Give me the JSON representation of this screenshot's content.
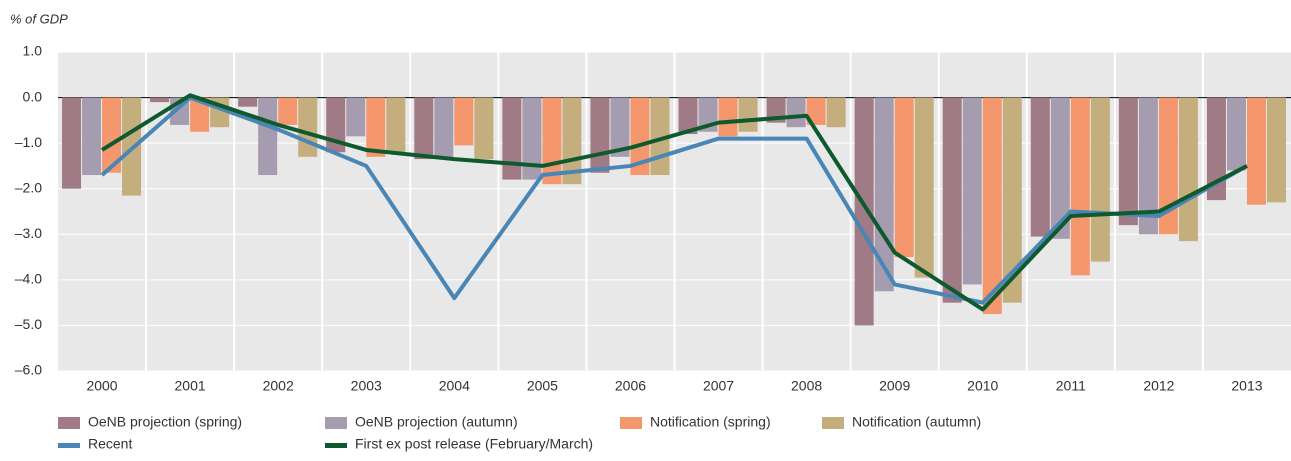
{
  "chart_data": {
    "type": "bar_line",
    "y_label": "% of GDP",
    "categories": [
      "2000",
      "2001",
      "2002",
      "2003",
      "2004",
      "2005",
      "2006",
      "2007",
      "2008",
      "2009",
      "2010",
      "2011",
      "2012",
      "2013"
    ],
    "series": [
      {
        "name": "OeNB projection (spring)",
        "color": "#a07a85",
        "kind": "bar",
        "values": [
          -2.0,
          -0.1,
          -0.2,
          -1.2,
          -1.35,
          -1.8,
          -1.65,
          -0.8,
          -0.55,
          -5.0,
          -4.5,
          -3.05,
          -2.8,
          -2.25
        ]
      },
      {
        "name": "OeNB projection (autumn)",
        "color": "#a69cb0",
        "kind": "bar",
        "values": [
          -1.7,
          -0.6,
          -1.7,
          -0.85,
          -1.35,
          -1.8,
          -1.3,
          -0.75,
          -0.65,
          -4.25,
          -4.1,
          -3.1,
          -3.0,
          -1.6
        ]
      },
      {
        "name": "Notification (spring)",
        "color": "#f4976c",
        "kind": "bar",
        "values": [
          -1.65,
          -0.75,
          -0.6,
          -1.3,
          -1.05,
          -1.9,
          -1.7,
          -0.85,
          -0.6,
          -3.5,
          -4.75,
          -3.9,
          -3.0,
          -2.35
        ]
      },
      {
        "name": "Notification (autumn)",
        "color": "#c5ae7e",
        "kind": "bar",
        "values": [
          -2.15,
          -0.65,
          -1.3,
          -1.2,
          -1.35,
          -1.9,
          -1.7,
          -0.75,
          -0.65,
          -3.95,
          -4.5,
          -3.6,
          -3.15,
          -2.3
        ]
      },
      {
        "name": "Recent",
        "color": "#4a86b5",
        "kind": "line",
        "values": [
          -1.7,
          0.0,
          -0.7,
          -1.5,
          -4.4,
          -1.7,
          -1.5,
          -0.9,
          -0.9,
          -4.1,
          -4.5,
          -2.5,
          -2.6,
          -1.5
        ]
      },
      {
        "name": "First ex post release (February/March)",
        "color": "#0e5a2e",
        "kind": "line",
        "values": [
          -1.15,
          0.05,
          -0.6,
          -1.15,
          -1.35,
          -1.5,
          -1.1,
          -0.55,
          -0.4,
          -3.4,
          -4.65,
          -2.6,
          -2.5,
          -1.5
        ]
      }
    ],
    "ylim": [
      -6.0,
      1.0
    ],
    "yticks": [
      {
        "value": 1.0,
        "label": "1.0"
      },
      {
        "value": 0.0,
        "label": "0.0"
      },
      {
        "value": -1.0,
        "label": "–1.0"
      },
      {
        "value": -2.0,
        "label": "–2.0"
      },
      {
        "value": -3.0,
        "label": "–3.0"
      },
      {
        "value": -4.0,
        "label": "–4.0"
      },
      {
        "value": -5.0,
        "label": "–5.0"
      },
      {
        "value": -6.0,
        "label": "–6.0"
      }
    ]
  }
}
